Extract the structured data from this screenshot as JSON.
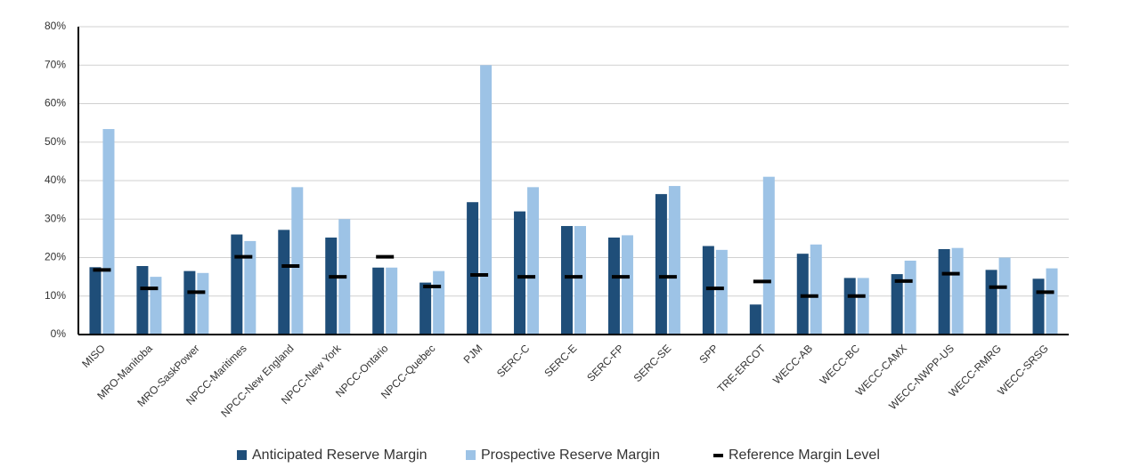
{
  "chart_data": {
    "type": "bar",
    "categories": [
      "MISO",
      "MRO-Manitoba",
      "MRO-SaskPower",
      "NPCC-Maritimes",
      "NPCC-New England",
      "NPCC-New York",
      "NPCC-Ontario",
      "NPCC-Quebec",
      "PJM",
      "SERC-C",
      "SERC-E",
      "SERC-FP",
      "SERC-SE",
      "SPP",
      "TRE-ERCOT",
      "WECC-AB",
      "WECC-BC",
      "WECC-CAMX",
      "WECC-NWPP-US",
      "WECC-RMRG",
      "WECC-SRSG"
    ],
    "series": [
      {
        "name": "Anticipated Reserve Margin",
        "color": "#1f4e79",
        "marker": "bar",
        "values": [
          17.5,
          17.8,
          16.5,
          26,
          27.2,
          25.2,
          17.4,
          13.5,
          34.4,
          32,
          28.2,
          25.2,
          36.5,
          23,
          7.8,
          21,
          14.7,
          15.7,
          22.2,
          16.8,
          14.5
        ]
      },
      {
        "name": "Prospective Reserve Margin",
        "color": "#9dc3e6",
        "marker": "bar",
        "values": [
          53.4,
          15,
          16,
          24.3,
          38.3,
          30,
          17.4,
          16.5,
          70,
          38.3,
          28.2,
          25.8,
          38.6,
          22,
          41,
          23.4,
          14.7,
          19.2,
          22.5,
          20,
          17.2
        ]
      },
      {
        "name": "Reference Margin Level",
        "color": "#000000",
        "marker": "dash",
        "values": [
          16.8,
          12,
          11,
          20.2,
          17.8,
          15,
          20.2,
          12.5,
          15.5,
          15,
          15,
          15,
          15,
          12,
          13.8,
          10,
          10,
          13.9,
          15.8,
          12.3,
          11
        ]
      }
    ],
    "ylim": [
      0,
      80
    ],
    "yticks": [
      {
        "value": 0,
        "label": "0%"
      },
      {
        "value": 10,
        "label": "10%"
      },
      {
        "value": 20,
        "label": "20%"
      },
      {
        "value": 30,
        "label": "30%"
      },
      {
        "value": 40,
        "label": "40%"
      },
      {
        "value": 50,
        "label": "50%"
      },
      {
        "value": 60,
        "label": "60%"
      },
      {
        "value": 70,
        "label": "70%"
      },
      {
        "value": 80,
        "label": "80%"
      }
    ],
    "grid": true,
    "legend": "bottom"
  }
}
